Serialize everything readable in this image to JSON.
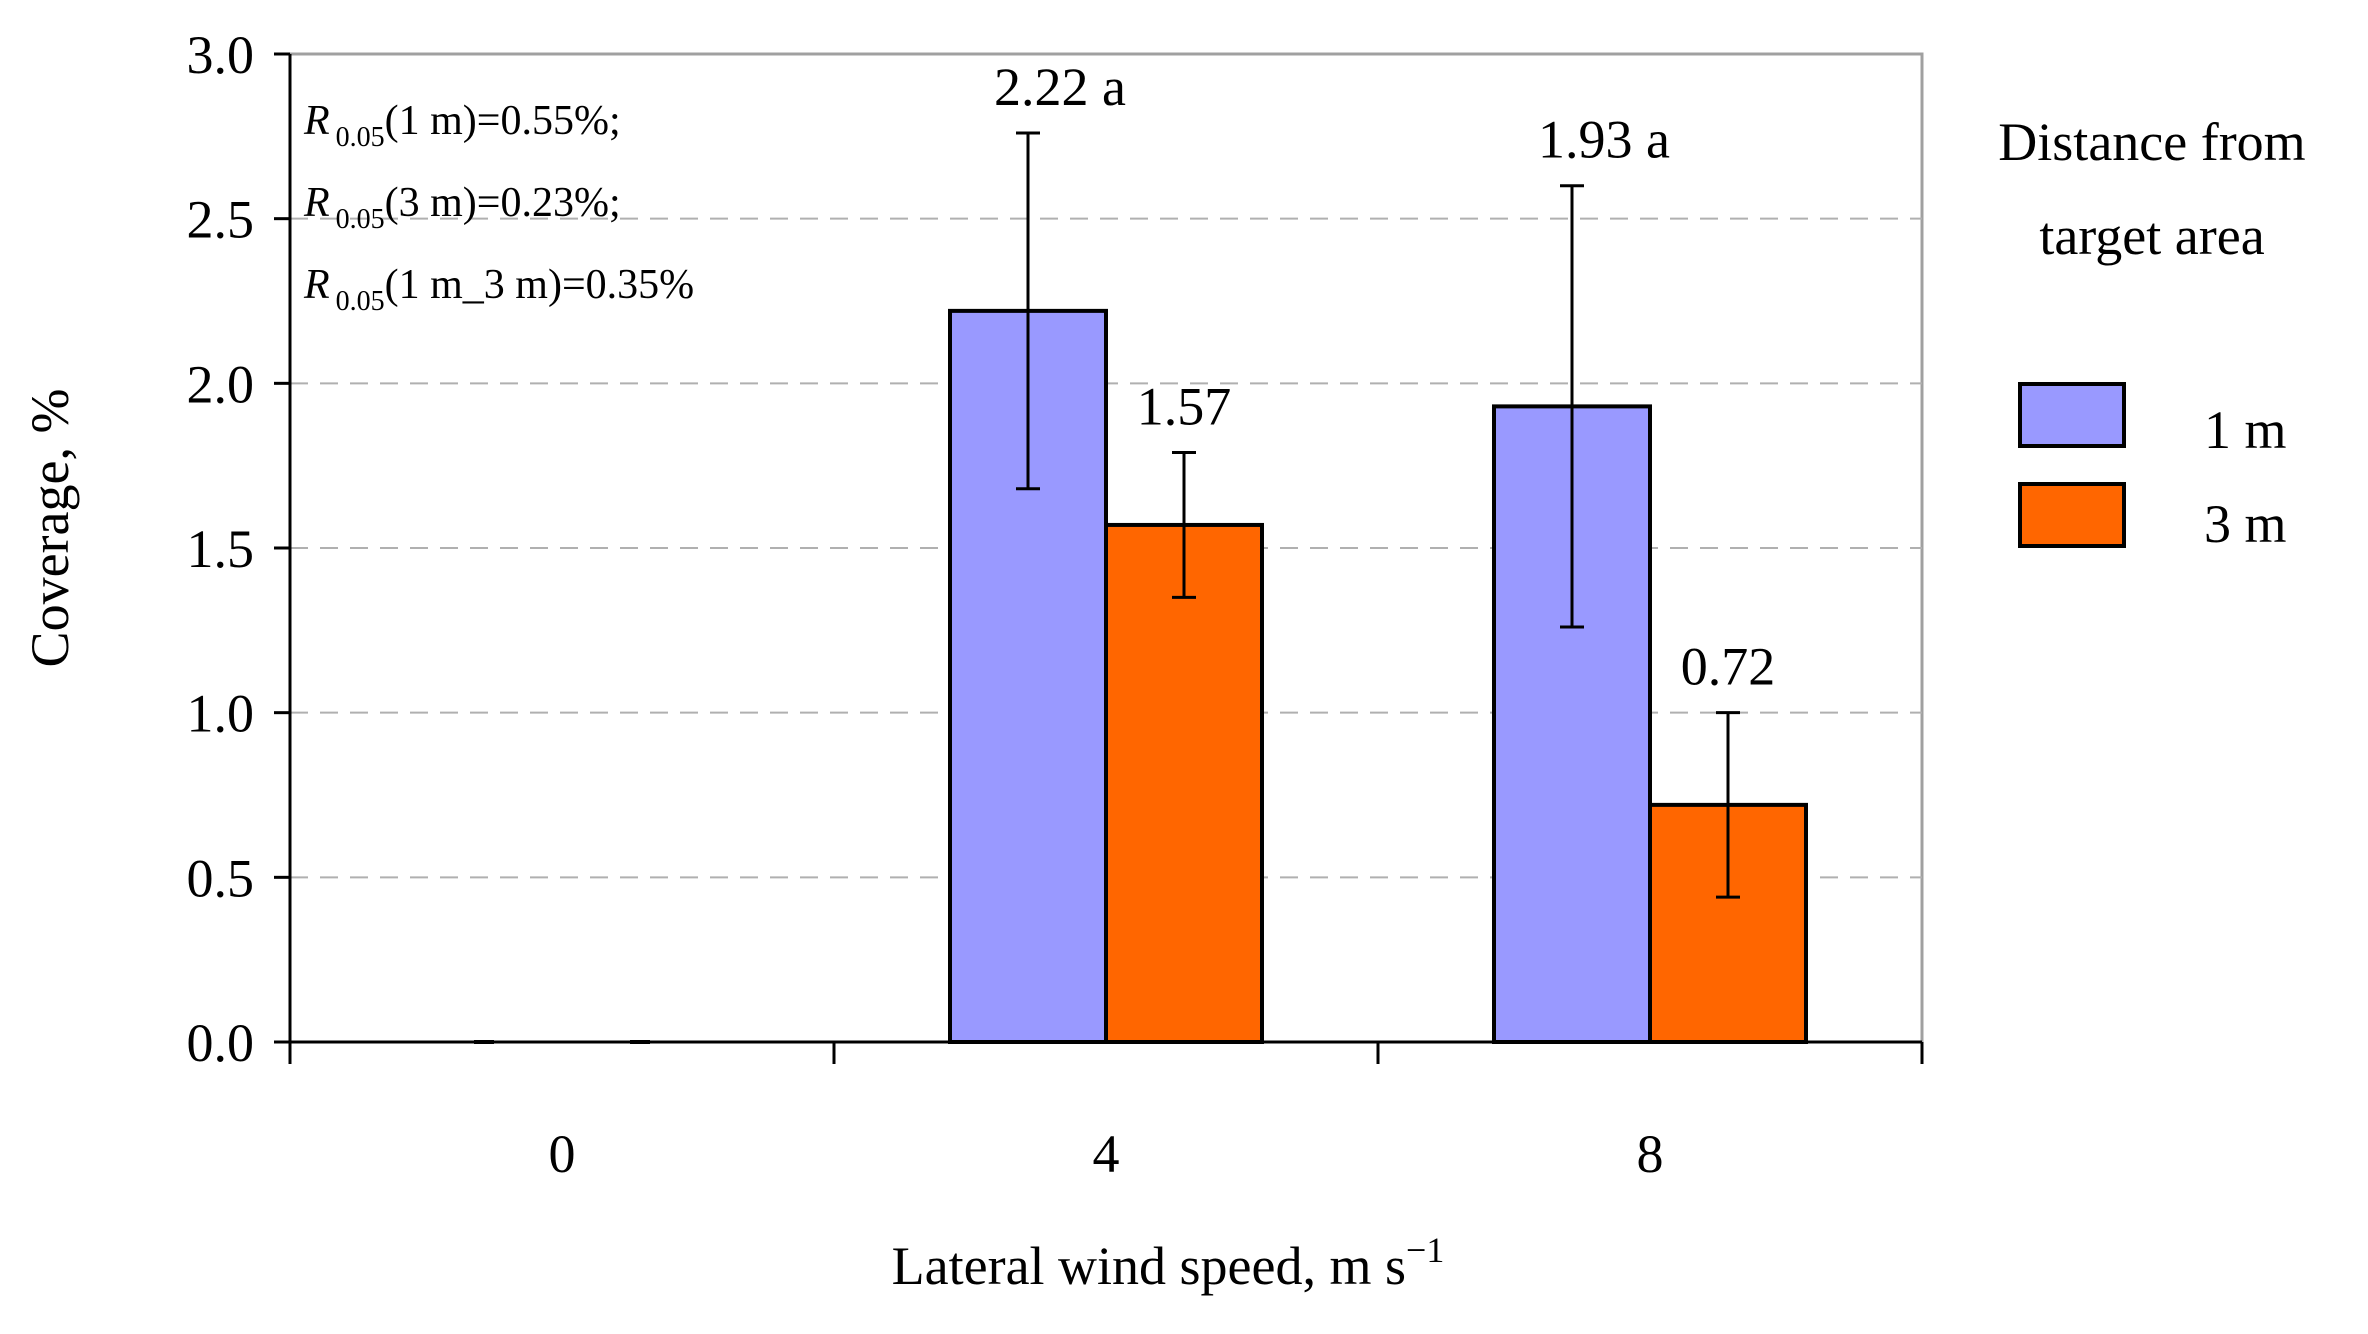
{
  "chart_data": {
    "type": "bar",
    "title": "",
    "xlabel": "Lateral wind speed, m s",
    "xlabel_superscript": "−1",
    "ylabel": "Coverage, %",
    "ylim": [
      0,
      3.0
    ],
    "yticks": [
      "0.0",
      "0.5",
      "1.0",
      "1.5",
      "2.0",
      "2.5",
      "3.0"
    ],
    "grid": "horizontal dashed",
    "categories": [
      "0",
      "4",
      "8"
    ],
    "series": [
      {
        "name": "1 m",
        "color": "#9999FF",
        "values": [
          0,
          2.22,
          1.93
        ],
        "error": [
          0,
          0.54,
          0.67
        ],
        "labels": [
          "",
          "2.22 a",
          "1.93 a"
        ]
      },
      {
        "name": "3 m",
        "color": "#FF6600",
        "values": [
          0,
          1.57,
          0.72
        ],
        "error": [
          0,
          0.22,
          0.28
        ],
        "labels": [
          "",
          "1.57",
          "0.72"
        ]
      }
    ],
    "legend": {
      "title_line1": "Distance from",
      "title_line2": "target area",
      "placement": "right"
    },
    "annotations": [
      {
        "symbol": "R",
        "sub": "0.05",
        "text": "(1 m)=0.55%;"
      },
      {
        "symbol": "R",
        "sub": "0.05",
        "text": "(3 m)=0.23%;"
      },
      {
        "symbol": "R",
        "sub": "0.05",
        "text": "(1 m_3 m)=0.35%"
      }
    ]
  }
}
